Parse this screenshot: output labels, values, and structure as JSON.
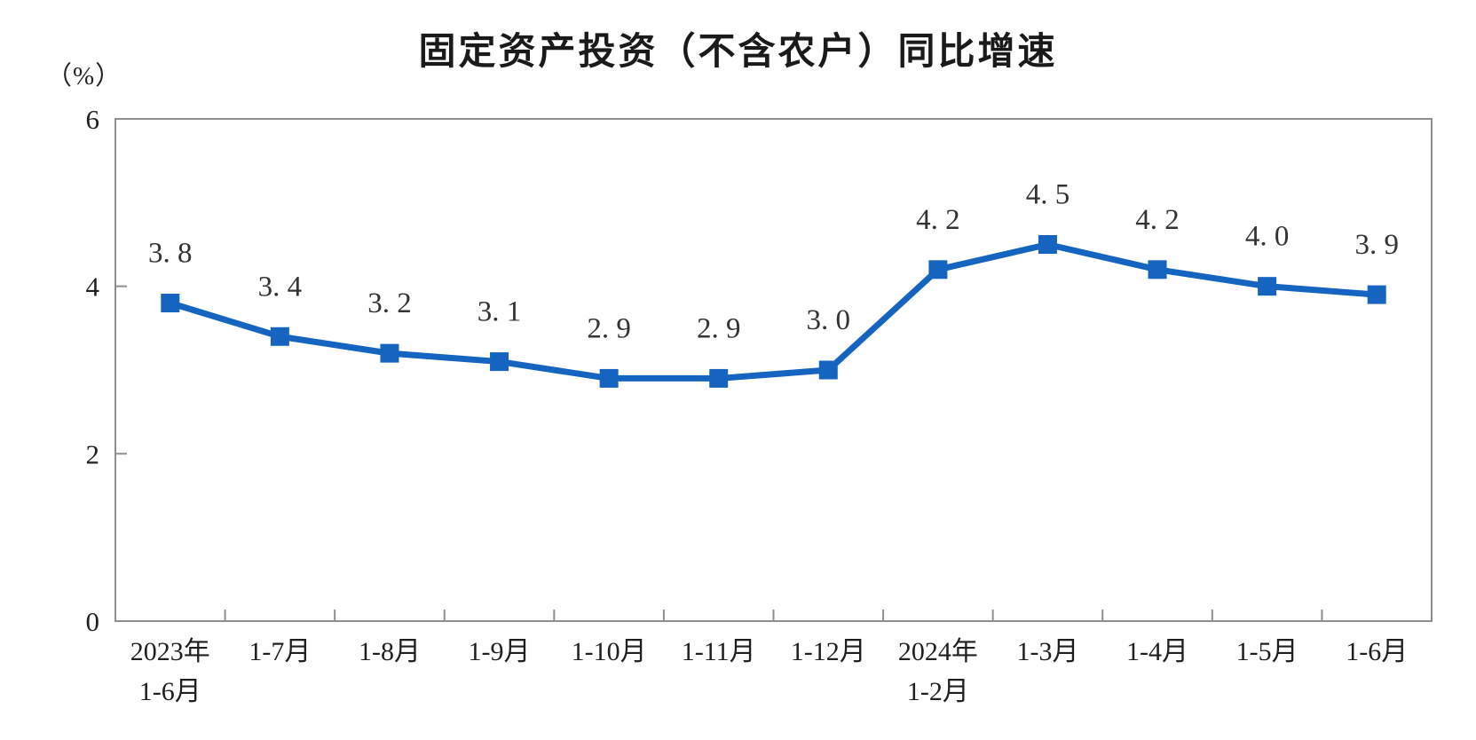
{
  "chart_data": {
    "type": "line",
    "title": "固定资产投资（不含农户）同比增速",
    "unit_label": "（%）",
    "categories": [
      [
        "2023年",
        "1-6月"
      ],
      [
        "1-7月"
      ],
      [
        "1-8月"
      ],
      [
        "1-9月"
      ],
      [
        "1-10月"
      ],
      [
        "1-11月"
      ],
      [
        "1-12月"
      ],
      [
        "2024年",
        "1-2月"
      ],
      [
        "1-3月"
      ],
      [
        "1-4月"
      ],
      [
        "1-5月"
      ],
      [
        "1-6月"
      ]
    ],
    "series": [
      {
        "name": "同比增速",
        "values": [
          3.8,
          3.4,
          3.2,
          3.1,
          2.9,
          2.9,
          3.0,
          4.2,
          4.5,
          4.2,
          4.0,
          3.9
        ],
        "value_labels": [
          "3. 8",
          "3. 4",
          "3. 2",
          "3. 1",
          "2. 9",
          "2. 9",
          "3. 0",
          "4. 2",
          "4. 5",
          "4. 2",
          "4. 0",
          "3. 9"
        ]
      }
    ],
    "xlabel": "",
    "ylabel": "（%）",
    "ylim": [
      0,
      6
    ],
    "yticks": [
      0,
      2,
      4,
      6
    ],
    "grid": false,
    "legend_position": "none",
    "marker": "square",
    "colors": {
      "line": "#1565c0",
      "marker": "#1565c0",
      "axis": "#8e8e8e",
      "tick_label": "#1f1f1f",
      "data_label": "#333333",
      "title": "#1a1a1a",
      "background": "#ffffff"
    }
  }
}
